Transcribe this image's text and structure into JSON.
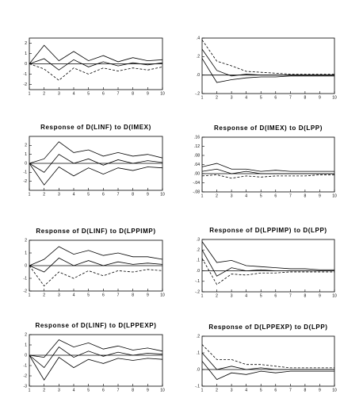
{
  "chart_data": [
    {
      "type": "line",
      "x": [
        1,
        2,
        3,
        4,
        5,
        6,
        7,
        8,
        9,
        10
      ],
      "xticks": [
        1,
        2,
        3,
        4,
        5,
        6,
        7,
        8,
        9,
        10
      ],
      "xlim": [
        1,
        10
      ],
      "ylim": [
        -2.5,
        2.5
      ],
      "yticks": [
        -2,
        -1,
        0,
        1,
        2
      ],
      "series": [
        {
          "color": "#000",
          "values": [
            0,
            0.5,
            -0.6,
            0.4,
            -0.3,
            0.2,
            -0.2,
            0.1,
            -0.1,
            0.1
          ]
        },
        {
          "color": "#000",
          "values": [
            0,
            1.8,
            0.3,
            1.2,
            0.3,
            0.8,
            0.2,
            0.6,
            0.3,
            0.4
          ]
        },
        {
          "color": "#000",
          "dash": true,
          "values": [
            0,
            -0.5,
            -1.6,
            -0.4,
            -1,
            -0.4,
            -0.7,
            -0.4,
            -0.6,
            -0.3
          ]
        }
      ]
    },
    {
      "type": "line",
      "x": [
        1,
        2,
        3,
        4,
        5,
        6,
        7,
        8,
        9,
        10
      ],
      "xticks": [
        1,
        2,
        3,
        4,
        5,
        6,
        7,
        8,
        9,
        10
      ],
      "xlim": [
        1,
        10
      ],
      "ylim": [
        -0.2,
        0.4
      ],
      "yticks": [
        {
          "value": 0.4,
          "label": ".4"
        },
        {
          "value": 0.2,
          "label": ".2"
        },
        {
          "value": 0,
          "label": ".0"
        },
        {
          "value": -0.2,
          "label": "-.2"
        }
      ],
      "series": [
        {
          "color": "#000",
          "values": [
            0.28,
            0.05,
            -0.01,
            0.01,
            0,
            0,
            0,
            0,
            0,
            0
          ]
        },
        {
          "color": "#000",
          "dash": true,
          "values": [
            0.38,
            0.15,
            0.1,
            0.04,
            0.03,
            0.02,
            0.01,
            0.01,
            0.01,
            0.01
          ]
        },
        {
          "color": "#000",
          "values": [
            0.18,
            -0.08,
            -0.05,
            -0.03,
            -0.02,
            -0.02,
            -0.01,
            -0.01,
            -0.01,
            -0.01
          ]
        }
      ]
    },
    {
      "type": "line",
      "title": "Response of D(LINF) to D(IMEX)",
      "x": [
        1,
        2,
        3,
        4,
        5,
        6,
        7,
        8,
        9,
        10
      ],
      "xticks": [
        1,
        2,
        3,
        4,
        5,
        6,
        7,
        8,
        9,
        10
      ],
      "xlim": [
        1,
        10
      ],
      "ylim": [
        -3,
        3
      ],
      "yticks": [
        -2,
        -1,
        0,
        1,
        2
      ],
      "series": [
        {
          "color": "#000",
          "values": [
            0,
            -1,
            1,
            0,
            0.5,
            -0.2,
            0.4,
            0,
            0.3,
            0.1
          ]
        },
        {
          "color": "#000",
          "values": [
            0,
            0.5,
            2.4,
            1.2,
            1.5,
            0.8,
            1.2,
            0.8,
            1,
            0.6
          ]
        },
        {
          "color": "#000",
          "values": [
            0,
            -2.4,
            -0.4,
            -1.4,
            -0.5,
            -1.2,
            -0.5,
            -0.8,
            -0.4,
            -0.5
          ]
        }
      ]
    },
    {
      "type": "line",
      "title": "Response of D(IMEX) to D(LPP)",
      "x": [
        1,
        2,
        3,
        4,
        5,
        6,
        7,
        8,
        9,
        10
      ],
      "xticks": [
        1,
        2,
        3,
        4,
        5,
        6,
        7,
        8,
        9,
        10
      ],
      "xlim": [
        1,
        10
      ],
      "ylim": [
        -0.08,
        0.16
      ],
      "yticks": [
        {
          "value": 0.16,
          "label": ".16"
        },
        {
          "value": 0.12,
          "label": ".12"
        },
        {
          "value": 0.08,
          "label": ".08"
        },
        {
          "value": 0.04,
          "label": ".04"
        },
        {
          "value": 0,
          "label": ".00"
        },
        {
          "value": -0.04,
          "label": "-.04"
        },
        {
          "value": -0.08,
          "label": "-.08"
        }
      ],
      "series": [
        {
          "color": "#000",
          "values": [
            0.01,
            0.02,
            0,
            0.01,
            0,
            0,
            0,
            0,
            0,
            0
          ]
        },
        {
          "color": "#000",
          "values": [
            0.03,
            0.045,
            0.02,
            0.02,
            0.01,
            0.015,
            0.01,
            0.01,
            0.01,
            0.01
          ]
        },
        {
          "color": "#000",
          "dash": true,
          "values": [
            -0.01,
            -0.005,
            -0.02,
            -0.01,
            -0.015,
            -0.01,
            -0.01,
            -0.01,
            -0.005,
            -0.005
          ]
        }
      ]
    },
    {
      "type": "line",
      "title": "Response of D(LINF) to D(LPPIMP)",
      "x": [
        1,
        2,
        3,
        4,
        5,
        6,
        7,
        8,
        9,
        10
      ],
      "xticks": [
        1,
        2,
        3,
        4,
        5,
        6,
        7,
        8,
        9,
        10
      ],
      "xlim": [
        1,
        10
      ],
      "ylim": [
        -2,
        2
      ],
      "yticks": [
        -2,
        -1,
        0,
        1,
        2
      ],
      "series": [
        {
          "color": "#000",
          "values": [
            0,
            -0.5,
            0.6,
            0,
            0.4,
            0,
            0.3,
            0.1,
            0.2,
            0.1
          ]
        },
        {
          "color": "#000",
          "values": [
            0,
            0.5,
            1.5,
            0.9,
            1.2,
            0.8,
            1,
            0.7,
            0.7,
            0.5
          ]
        },
        {
          "color": "#000",
          "dash": true,
          "values": [
            0,
            -1.6,
            -0.5,
            -1,
            -0.4,
            -0.8,
            -0.4,
            -0.5,
            -0.3,
            -0.4
          ]
        }
      ]
    },
    {
      "type": "line",
      "title": "Response of D(LPPIMP) to D(LPP)",
      "x": [
        1,
        2,
        3,
        4,
        5,
        6,
        7,
        8,
        9,
        10
      ],
      "xticks": [
        1,
        2,
        3,
        4,
        5,
        6,
        7,
        8,
        9,
        10
      ],
      "xlim": [
        1,
        10
      ],
      "ylim": [
        -0.2,
        0.3
      ],
      "yticks": [
        {
          "value": 0.3,
          "label": ".3"
        },
        {
          "value": 0.2,
          "label": ".2"
        },
        {
          "value": 0.1,
          "label": ".1"
        },
        {
          "value": 0,
          "label": ".0"
        },
        {
          "value": -0.1,
          "label": "-.1"
        },
        {
          "value": -0.2,
          "label": "-.2"
        }
      ],
      "series": [
        {
          "color": "#000",
          "values": [
            0.2,
            -0.05,
            0.03,
            0,
            0.01,
            0,
            0,
            0,
            0,
            0
          ]
        },
        {
          "color": "#000",
          "values": [
            0.28,
            0.08,
            0.1,
            0.05,
            0.04,
            0.03,
            0.02,
            0.02,
            0.01,
            0.01
          ]
        },
        {
          "color": "#000",
          "dash": true,
          "values": [
            0.12,
            -0.13,
            -0.03,
            -0.04,
            -0.02,
            -0.02,
            -0.01,
            -0.01,
            -0.01,
            -0.01
          ]
        }
      ]
    },
    {
      "type": "line",
      "title": "Response of D(LINF) to D(LPPEXP)",
      "x": [
        1,
        2,
        3,
        4,
        5,
        6,
        7,
        8,
        9,
        10
      ],
      "xticks": [
        1,
        2,
        3,
        4,
        5,
        6,
        7,
        8,
        9,
        10
      ],
      "xlim": [
        1,
        10
      ],
      "ylim": [
        -3,
        2
      ],
      "yticks": [
        -3,
        -2,
        -1,
        0,
        1,
        2
      ],
      "series": [
        {
          "color": "#000",
          "values": [
            0,
            -1.2,
            0.8,
            -0.2,
            0.4,
            -0.1,
            0.3,
            0,
            0.2,
            0.1
          ]
        },
        {
          "color": "#000",
          "values": [
            0,
            -0.2,
            1.5,
            0.8,
            1.2,
            0.6,
            0.9,
            0.5,
            0.7,
            0.4
          ]
        },
        {
          "color": "#000",
          "values": [
            0,
            -2.4,
            -0.2,
            -1.2,
            -0.4,
            -0.8,
            -0.3,
            -0.5,
            -0.3,
            -0.4
          ]
        }
      ]
    },
    {
      "type": "line",
      "title": "Response of D(LPPEXP) to D(LPP)",
      "x": [
        1,
        2,
        3,
        4,
        5,
        6,
        7,
        8,
        9,
        10
      ],
      "xticks": [
        1,
        2,
        3,
        4,
        5,
        6,
        7,
        8,
        9,
        10
      ],
      "xlim": [
        1,
        10
      ],
      "ylim": [
        -0.1,
        0.2
      ],
      "yticks": [
        {
          "value": 0.2,
          "label": ".2"
        },
        {
          "value": 0.1,
          "label": ".1"
        },
        {
          "value": 0,
          "label": ".0"
        },
        {
          "value": -0.1,
          "label": "-.1"
        }
      ],
      "series": [
        {
          "color": "#000",
          "values": [
            0.1,
            0,
            0.02,
            0,
            0.01,
            0,
            0,
            0,
            0,
            0
          ]
        },
        {
          "color": "#000",
          "dash": true,
          "values": [
            0.15,
            0.06,
            0.06,
            0.03,
            0.03,
            0.02,
            0.01,
            0.01,
            0.01,
            0.01
          ]
        },
        {
          "color": "#000",
          "values": [
            0.05,
            -0.06,
            -0.02,
            -0.03,
            -0.01,
            -0.02,
            -0.01,
            -0.01,
            -0.01,
            -0.01
          ]
        }
      ]
    }
  ]
}
